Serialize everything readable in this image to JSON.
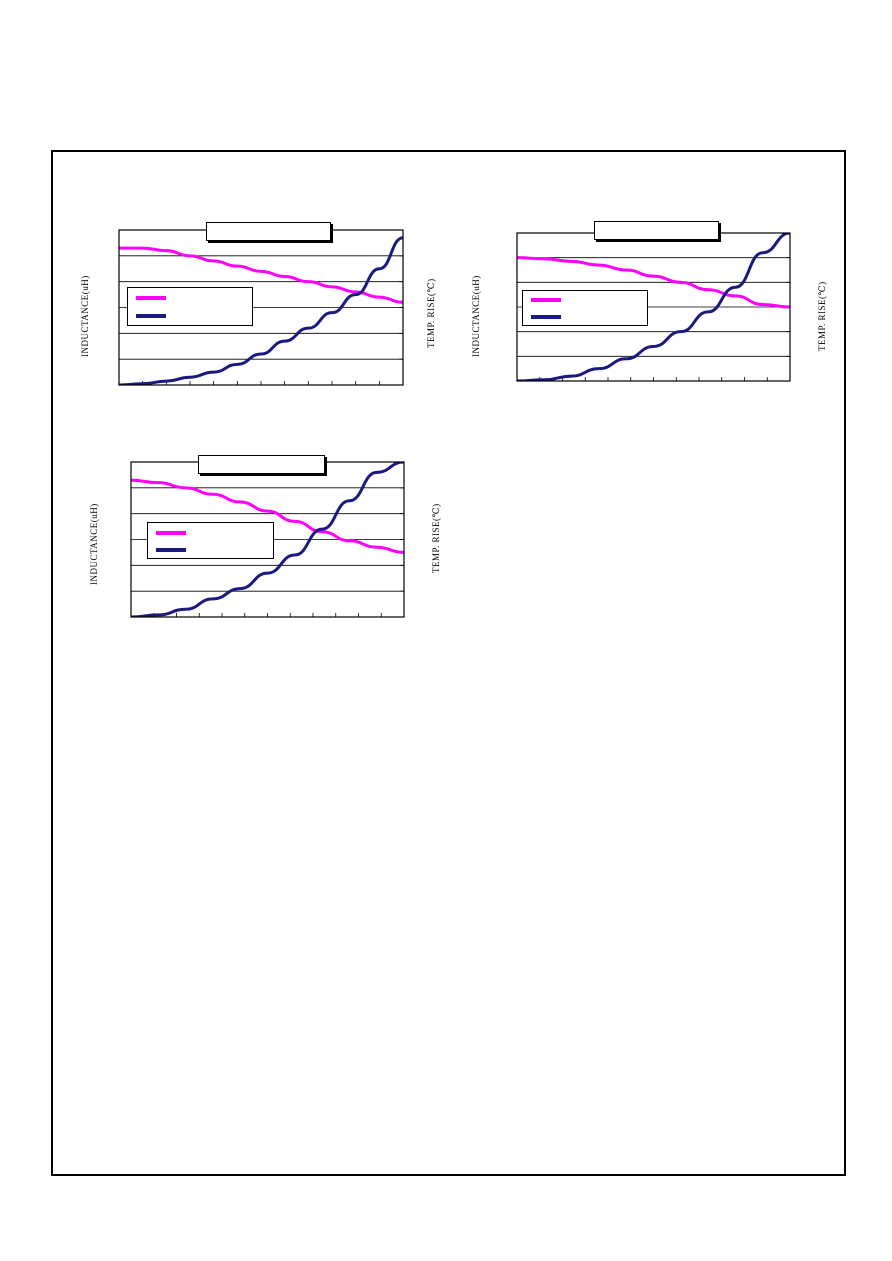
{
  "colors": {
    "inductance": "#ff00ff",
    "temp_rise": "#1a1a80",
    "grid": "#000000"
  },
  "chart_data": [
    {
      "type": "line",
      "title": "",
      "ylabel": "INDUCTANCE(uH)",
      "y2label": "TEMP. RISE(℃)",
      "xlim": [
        0,
        12
      ],
      "ylim": [
        0,
        6
      ],
      "y2lim": [
        0,
        60
      ],
      "grid": true,
      "legend": "left",
      "series": [
        {
          "name": "",
          "axis": "left",
          "x": [
            0,
            1,
            2,
            3,
            4,
            5,
            6,
            7,
            8,
            9,
            10,
            11,
            12
          ],
          "values": [
            5.3,
            5.3,
            5.2,
            5.0,
            4.8,
            4.6,
            4.4,
            4.2,
            4.0,
            3.8,
            3.6,
            3.4,
            3.2
          ]
        },
        {
          "name": "",
          "axis": "right",
          "x": [
            0,
            1,
            2,
            3,
            4,
            5,
            6,
            7,
            8,
            9,
            10,
            11,
            12
          ],
          "values": [
            0,
            0.5,
            1.5,
            3,
            5,
            8,
            12,
            17,
            22,
            28,
            35,
            45,
            57
          ]
        }
      ]
    },
    {
      "type": "line",
      "title": "",
      "ylabel": "INDUCTANCE(uH)",
      "y2label": "TEMP. RISE(℃)",
      "xlim": [
        0,
        10
      ],
      "ylim": [
        0,
        6
      ],
      "y2lim": [
        0,
        60
      ],
      "grid": true,
      "legend": "left",
      "series": [
        {
          "name": "",
          "axis": "left",
          "x": [
            0,
            1,
            2,
            3,
            4,
            5,
            6,
            7,
            8,
            9,
            10
          ],
          "values": [
            5.0,
            4.95,
            4.85,
            4.7,
            4.5,
            4.25,
            4.0,
            3.7,
            3.45,
            3.1,
            3.0
          ]
        },
        {
          "name": "",
          "axis": "right",
          "x": [
            0,
            1,
            2,
            3,
            4,
            5,
            6,
            7,
            8,
            9,
            10
          ],
          "values": [
            0,
            0.5,
            2,
            5,
            9,
            14,
            20,
            28,
            38,
            52,
            60
          ]
        }
      ]
    },
    {
      "type": "line",
      "title": "",
      "ylabel": "INDUCTANCE(uH)",
      "y2label": "TEMP. RISE(℃)",
      "xlim": [
        0,
        10
      ],
      "ylim": [
        0,
        6
      ],
      "y2lim": [
        0,
        60
      ],
      "grid": true,
      "legend": "left",
      "series": [
        {
          "name": "",
          "axis": "left",
          "x": [
            0,
            1,
            2,
            3,
            4,
            5,
            6,
            7,
            8,
            9,
            10
          ],
          "values": [
            5.3,
            5.2,
            5.0,
            4.75,
            4.45,
            4.1,
            3.7,
            3.3,
            2.95,
            2.7,
            2.5
          ]
        },
        {
          "name": "",
          "axis": "right",
          "x": [
            0,
            1,
            2,
            3,
            4,
            5,
            6,
            7,
            8,
            9,
            10
          ],
          "values": [
            0,
            0.8,
            3,
            7,
            11,
            17,
            24,
            34,
            45,
            56,
            60
          ]
        }
      ]
    }
  ]
}
